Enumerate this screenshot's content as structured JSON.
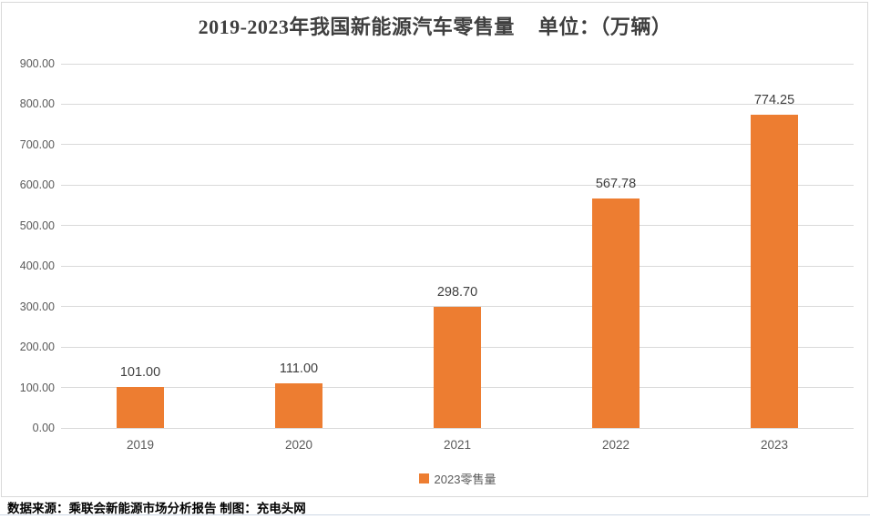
{
  "chart_data": {
    "type": "bar",
    "title": "2019-2023年我国新能源汽车零售量",
    "unit_label": "单位：（万辆）",
    "categories": [
      "2019",
      "2020",
      "2021",
      "2022",
      "2023"
    ],
    "series": [
      {
        "name": "2023零售量",
        "values": [
          101.0,
          111.0,
          298.7,
          567.78,
          774.25
        ]
      }
    ],
    "value_labels": [
      "101.00",
      "111.00",
      "298.70",
      "567.78",
      "774.25"
    ],
    "xlabel": "",
    "ylabel": "",
    "ylim": [
      0,
      900
    ],
    "ytick_step": 100,
    "ytick_labels": [
      "0.00",
      "100.00",
      "200.00",
      "300.00",
      "400.00",
      "500.00",
      "600.00",
      "700.00",
      "800.00",
      "900.00"
    ],
    "grid": true,
    "legend_entries": [
      "2023零售量"
    ],
    "legend_position": "bottom",
    "bar_color": "#ED7D31"
  },
  "footer": {
    "source": "数据来源：乘联会新能源市场分析报告  制图：充电头网"
  },
  "colors": {
    "bar": "#ED7D31",
    "title_text": "#3F3F3F",
    "axis_text": "#595959",
    "value_label_text": "#404040",
    "gridline": "#D9D9D9",
    "frame_border": "#D9D9D9",
    "footer_text": "#000000",
    "bottom_rule": "#CDD7E4"
  }
}
